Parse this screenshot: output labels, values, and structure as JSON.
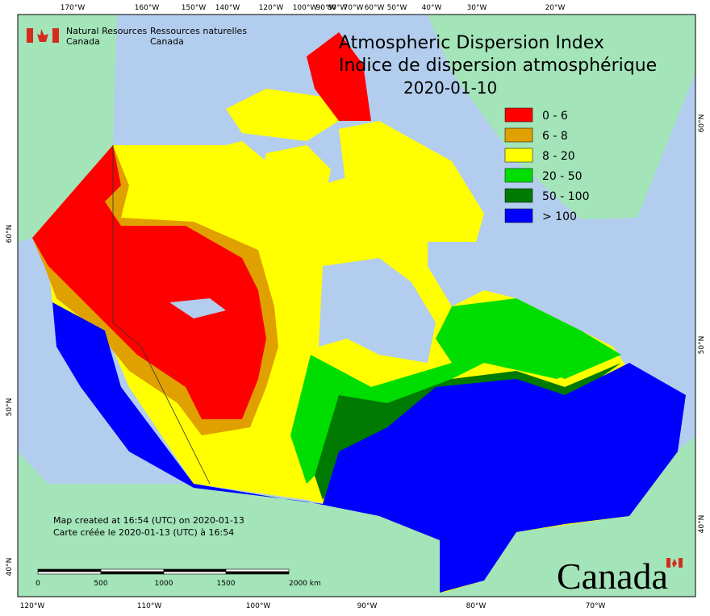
{
  "header": {
    "logo_en": [
      "Natural Resources",
      "Canada"
    ],
    "logo_fr": [
      "Ressources naturelles",
      "Canada"
    ]
  },
  "title": {
    "line1": "Atmospheric Dispersion Index",
    "line2": "Indice de dispersion atmosphérique",
    "date": "2020-01-10"
  },
  "legend": [
    {
      "label": "0 - 6",
      "color": "#ff0000"
    },
    {
      "label": "6 - 8",
      "color": "#e0a000"
    },
    {
      "label": "8 - 20",
      "color": "#ffff00"
    },
    {
      "label": "20 - 50",
      "color": "#00dd00"
    },
    {
      "label": "50 - 100",
      "color": "#007a00"
    },
    {
      "label": "> 100",
      "color": "#0000ff"
    }
  ],
  "graticule": {
    "top": [
      "170°W",
      "160°W",
      "150°W",
      "140°W",
      "120°W",
      "100°W",
      "90°W",
      "80°W",
      "70°W",
      "60°W",
      "50°W",
      "40°W",
      "30°W",
      "20°W"
    ],
    "bottom": [
      "120°W",
      "110°W",
      "100°W",
      "90°W",
      "80°W",
      "70°W"
    ],
    "left": [
      "60°N",
      "50°N",
      "40°N"
    ],
    "right": [
      "60°N",
      "50°N",
      "40°N"
    ]
  },
  "scale_bar": {
    "labels": [
      "0",
      "500",
      "1000",
      "1500",
      "2000 km"
    ]
  },
  "footer": {
    "created_en": "Map created at 16:54 (UTC) on 2020-01-13",
    "created_fr": "Carte créée le 2020-01-13 (UTC) à 16:54"
  },
  "wordmark": "Canada"
}
